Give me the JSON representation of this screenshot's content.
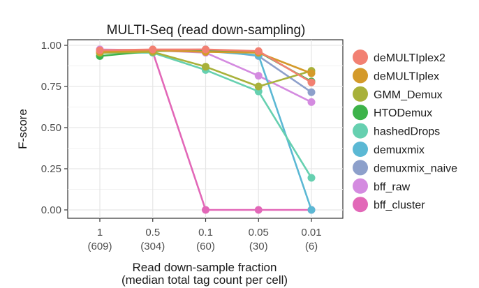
{
  "chart_data": {
    "type": "line",
    "title": "MULTI-Seq (read down-sampling)",
    "xlabel_lines": [
      "Read down-sample fraction",
      "(median total tag count per cell)"
    ],
    "ylabel": "F-score",
    "categories": [
      {
        "fraction": "1",
        "count": "(609)"
      },
      {
        "fraction": "0.5",
        "count": "(304)"
      },
      {
        "fraction": "0.1",
        "count": "(60)"
      },
      {
        "fraction": "0.05",
        "count": "(30)"
      },
      {
        "fraction": "0.01",
        "count": "(6)"
      }
    ],
    "ylim": [
      0,
      1.05
    ],
    "yticks": [
      "0.00",
      "0.25",
      "0.50",
      "0.75",
      "1.00"
    ],
    "yticks_values": [
      0,
      0.25,
      0.5,
      0.75,
      1.0
    ],
    "grid": true,
    "legend_position": "right",
    "series": [
      {
        "name": "bff_cluster",
        "color": "#E268B8",
        "values": [
          0.965,
          0.96,
          0.0,
          0.0,
          0.0
        ]
      },
      {
        "name": "bff_raw",
        "color": "#D48BE0",
        "values": [
          0.975,
          0.97,
          0.955,
          0.815,
          0.655
        ]
      },
      {
        "name": "demuxmix_naive",
        "color": "#8DA0CB",
        "values": [
          0.955,
          0.97,
          0.975,
          0.935,
          0.715
        ]
      },
      {
        "name": "demuxmix",
        "color": "#5BB8D4",
        "values": [
          0.96,
          0.97,
          0.965,
          0.94,
          0.0
        ]
      },
      {
        "name": "hashedDrops",
        "color": "#66D0B0",
        "values": [
          0.955,
          0.955,
          0.85,
          0.72,
          0.195
        ]
      },
      {
        "name": "HTODemux",
        "color": "#3DB34A",
        "values": [
          0.935,
          0.965,
          0.97,
          0.96,
          0.78
        ]
      },
      {
        "name": "GMM_Demux",
        "color": "#A8B13A",
        "values": [
          0.955,
          0.96,
          0.87,
          0.75,
          0.845
        ]
      },
      {
        "name": "deMULTIplex",
        "color": "#D49A2A",
        "values": [
          0.96,
          0.97,
          0.96,
          0.955,
          0.83
        ]
      },
      {
        "name": "deMULTIplex2",
        "color": "#F28072",
        "values": [
          0.97,
          0.975,
          0.975,
          0.965,
          0.775
        ]
      }
    ],
    "legend_order": [
      "deMULTIplex2",
      "deMULTIplex",
      "GMM_Demux",
      "HTODemux",
      "hashedDrops",
      "demuxmix",
      "demuxmix_naive",
      "bff_raw",
      "bff_cluster"
    ]
  }
}
